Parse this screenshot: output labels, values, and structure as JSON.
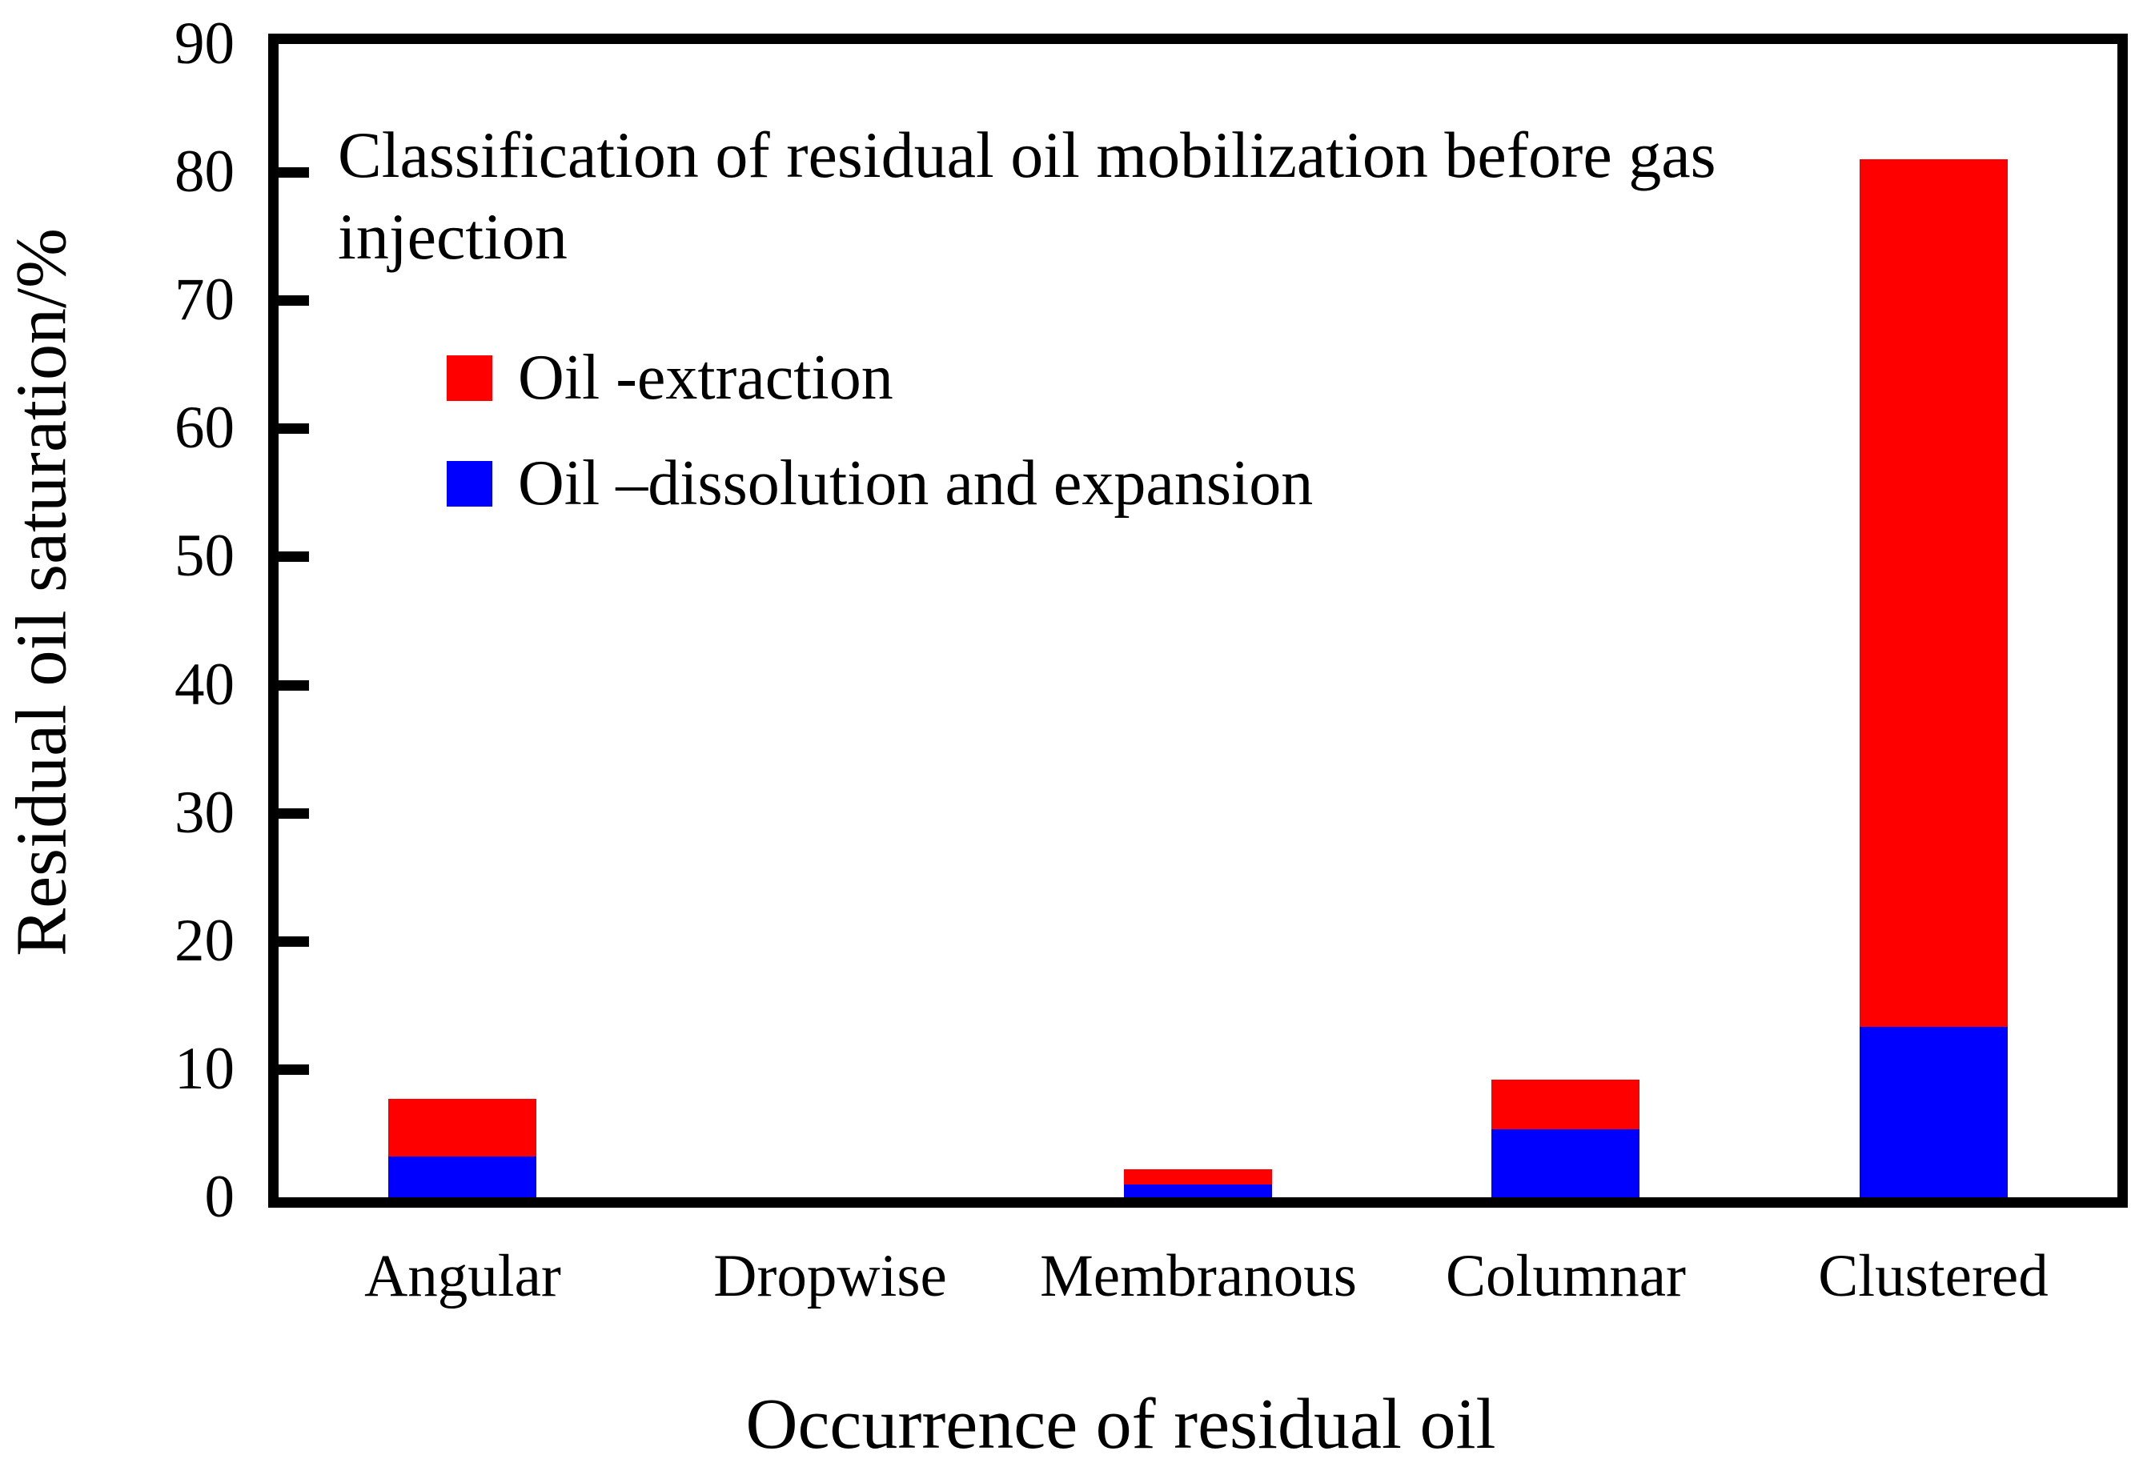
{
  "figure": {
    "annotation_line1": "Classification of residual oil mobilization before gas",
    "annotation_line2": "injection"
  },
  "axes": {
    "y_title": "Residual oil saturation/%",
    "x_title": "Occurrence of residual oil",
    "y_tick_labels": [
      90,
      80,
      70,
      60,
      50,
      40,
      30,
      20,
      10,
      0
    ],
    "y_tick_marks": [
      80,
      70,
      60,
      50,
      40,
      30,
      20,
      10
    ]
  },
  "legend": [
    {
      "label": "Oil -extraction",
      "color": "#ff0000"
    },
    {
      "label": "Oil –dissolution and expansion",
      "color": "#0000ff"
    }
  ],
  "colors": {
    "extraction": "#ff0000",
    "dissolution": "#0000ff",
    "frame": "#000000",
    "background": "#ffffff"
  },
  "chart_data": {
    "type": "bar",
    "stacked": true,
    "title": "Classification of residual oil mobilization before gas injection",
    "xlabel": "Occurrence of residual oil",
    "ylabel": "Residual oil saturation/%",
    "categories": [
      "Angular",
      "Dropwise",
      "Membranous",
      "Columnar",
      "Clustered"
    ],
    "series": [
      {
        "name": "Oil –dissolution and expansion",
        "color": "#0000ff",
        "values": [
          3.2,
          0,
          1.0,
          5.3,
          13.3
        ]
      },
      {
        "name": "Oil -extraction",
        "color": "#ff0000",
        "values": [
          4.5,
          0,
          1.2,
          3.9,
          67.7
        ]
      }
    ],
    "totals": [
      7.7,
      0,
      2.2,
      9.2,
      81.0
    ],
    "ylim": [
      0,
      90
    ],
    "ytick_interval": 10,
    "grid": false,
    "legend_position": "upper-left-inside"
  }
}
